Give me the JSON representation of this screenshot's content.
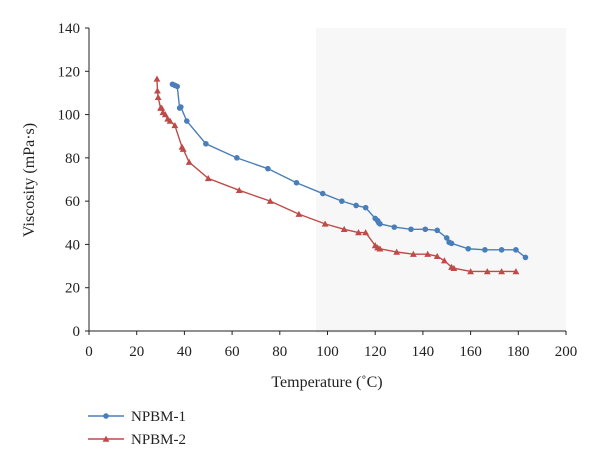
{
  "chart_data": {
    "type": "line",
    "title": "",
    "xlabel": "Temperature (˚C)",
    "ylabel": "Viscosity (mPa·s)",
    "xlim": [
      0,
      200
    ],
    "ylim": [
      0,
      140
    ],
    "xticks": [
      "0",
      "20",
      "40",
      "60",
      "80",
      "100",
      "120",
      "140",
      "160",
      "180",
      "200"
    ],
    "yticks": [
      "0",
      "20",
      "40",
      "60",
      "80",
      "100",
      "120",
      "140"
    ],
    "grid": false,
    "legend_position": "bottom-left",
    "series": [
      {
        "name": "NPBM-1",
        "color": "#4a7ebb",
        "marker": "circle",
        "points": [
          [
            35,
            114
          ],
          [
            36,
            113.5
          ],
          [
            37,
            113
          ],
          [
            38,
            103
          ],
          [
            38.5,
            103.5
          ],
          [
            41,
            97
          ],
          [
            49,
            86.5
          ],
          [
            62,
            80
          ],
          [
            75,
            75
          ],
          [
            87,
            68.5
          ],
          [
            98,
            63.5
          ],
          [
            106,
            60
          ],
          [
            112,
            58
          ],
          [
            116,
            57
          ],
          [
            120,
            52
          ],
          [
            121,
            51
          ],
          [
            121.5,
            50
          ],
          [
            122,
            49.5
          ],
          [
            128,
            48
          ],
          [
            135,
            47
          ],
          [
            141,
            47
          ],
          [
            146,
            46.5
          ],
          [
            150,
            43
          ],
          [
            151,
            41
          ],
          [
            152,
            40.5
          ],
          [
            159,
            38
          ],
          [
            166,
            37.5
          ],
          [
            173,
            37.5
          ],
          [
            179,
            37.5
          ],
          [
            183,
            34
          ]
        ]
      },
      {
        "name": "NPBM-2",
        "color": "#be4b48",
        "marker": "triangle",
        "points": [
          [
            28.5,
            116.5
          ],
          [
            28.7,
            111
          ],
          [
            29,
            108
          ],
          [
            30,
            103
          ],
          [
            30.5,
            103
          ],
          [
            31,
            101
          ],
          [
            32,
            100
          ],
          [
            33,
            98
          ],
          [
            34,
            97
          ],
          [
            36,
            95
          ],
          [
            39,
            85
          ],
          [
            39.5,
            84
          ],
          [
            42,
            78
          ],
          [
            50,
            70.5
          ],
          [
            63,
            65
          ],
          [
            76,
            60
          ],
          [
            88,
            54
          ],
          [
            99,
            49.5
          ],
          [
            107,
            47
          ],
          [
            113,
            45.5
          ],
          [
            116,
            45.5
          ],
          [
            120,
            39.5
          ],
          [
            121,
            38.5
          ],
          [
            122,
            38
          ],
          [
            129,
            36.5
          ],
          [
            136,
            35.5
          ],
          [
            142,
            35.5
          ],
          [
            146,
            34.5
          ],
          [
            149,
            32.5
          ],
          [
            152,
            29.5
          ],
          [
            153,
            29
          ],
          [
            160,
            27.5
          ],
          [
            167,
            27.5
          ],
          [
            173,
            27.5
          ],
          [
            179,
            27.5
          ]
        ]
      }
    ]
  }
}
